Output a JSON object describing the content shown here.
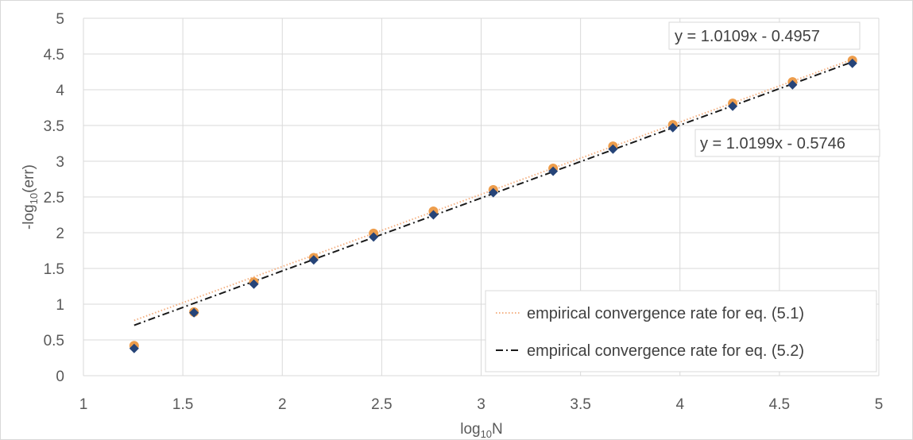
{
  "chart_data": {
    "type": "scatter",
    "xlabel": {
      "prefix": "log",
      "sub": "10",
      "suffix": "N"
    },
    "ylabel": {
      "prefix": "-log",
      "sub": "10",
      "suffix": "(err)"
    },
    "xlim": [
      1,
      5
    ],
    "ylim": [
      0,
      5
    ],
    "x_ticks": [
      "1",
      "1.5",
      "2",
      "2.5",
      "3",
      "3.5",
      "4",
      "4.5",
      "5"
    ],
    "y_ticks": [
      "0",
      "0.5",
      "1",
      "1.5",
      "2",
      "2.5",
      "3",
      "3.5",
      "4",
      "4.5",
      "5"
    ],
    "grid": true,
    "legend_position": "bottom-right",
    "series": [
      {
        "marker": "circle",
        "color": "#ed9d4c",
        "x": [
          1.255,
          1.556,
          1.857,
          2.158,
          2.459,
          2.76,
          3.061,
          3.362,
          3.663,
          3.964,
          4.265,
          4.566,
          4.867
        ],
        "y": [
          0.42,
          0.89,
          1.31,
          1.65,
          1.99,
          2.3,
          2.6,
          2.9,
          3.21,
          3.51,
          3.81,
          4.11,
          4.41
        ]
      },
      {
        "marker": "diamond",
        "color": "#264478",
        "x": [
          1.255,
          1.556,
          1.857,
          2.158,
          2.459,
          2.76,
          3.061,
          3.362,
          3.663,
          3.964,
          4.265,
          4.566,
          4.867
        ],
        "y": [
          0.38,
          0.88,
          1.28,
          1.62,
          1.94,
          2.25,
          2.56,
          2.86,
          3.17,
          3.47,
          3.77,
          4.07,
          4.37
        ]
      }
    ],
    "trendlines": [
      {
        "name": "empirical convergence rate for eq. (5.1)",
        "slope": 1.0109,
        "intercept": -0.4957,
        "x_range": [
          1.255,
          4.867
        ],
        "color": "#f4b183",
        "style": "dotted",
        "equation": "y = 1.0109x - 0.4957"
      },
      {
        "name": "empirical convergence rate for eq. (5.2)",
        "slope": 1.0199,
        "intercept": -0.5746,
        "x_range": [
          1.255,
          4.867
        ],
        "color": "#1a1a1a",
        "style": "dashdot",
        "equation": "y = 1.0199x - 0.5746"
      }
    ]
  }
}
